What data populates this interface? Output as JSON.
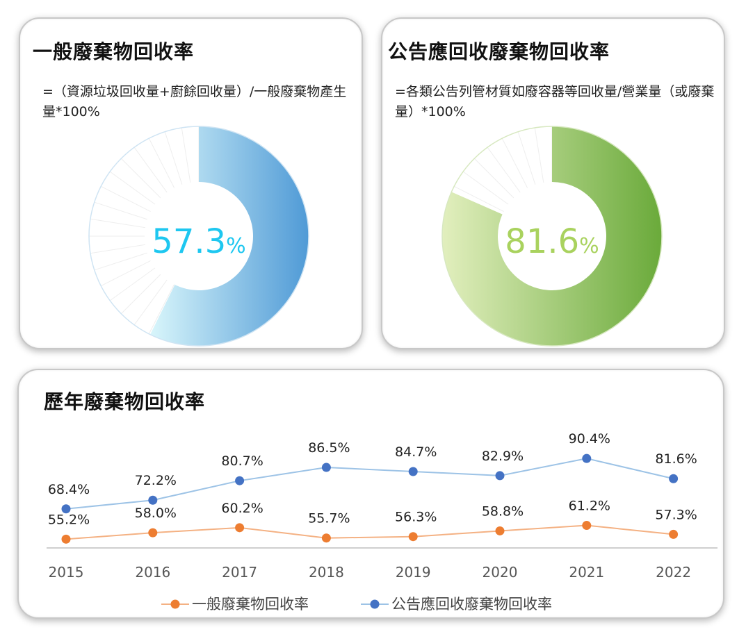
{
  "cards": [
    {
      "title": "一般廢棄物回收率",
      "formula": "=（資源垃圾回收量+廚餘回收量）/一般廢棄物產生量*100%",
      "value": 57.3,
      "value_text": "57.3",
      "unit": "%",
      "value_color": "#1ec7f0"
    },
    {
      "title": "公告應回收廢棄物回收率",
      "formula": "=各類公告列管材質如廢容器等回收量/營業量（或廢棄量）*100%",
      "value": 81.6,
      "value_text": "81.6",
      "unit": "%",
      "value_color": "#a9d25e"
    }
  ],
  "trend": {
    "title": "歷年廢棄物回收率"
  },
  "chart_data": [
    {
      "type": "pie",
      "title": "一般廢棄物回收率",
      "values": [
        57.3,
        42.7
      ],
      "colors": [
        "#4f9ad6",
        "#ffffff"
      ]
    },
    {
      "type": "pie",
      "title": "公告應回收廢棄物回收率",
      "values": [
        81.6,
        18.4
      ],
      "colors": [
        "#6aaa3a",
        "#ffffff"
      ]
    },
    {
      "type": "line",
      "title": "歷年廢棄物回收率",
      "categories": [
        "2015",
        "2016",
        "2017",
        "2018",
        "2019",
        "2020",
        "2021",
        "2022"
      ],
      "series": [
        {
          "name": "一般廢棄物回收率",
          "values": [
            55.2,
            58.0,
            60.2,
            55.7,
            56.3,
            58.8,
            61.2,
            57.3
          ],
          "labels": [
            "55.2%",
            "58.0%",
            "60.2%",
            "55.7%",
            "56.3%",
            "58.8%",
            "61.2%",
            "57.3%"
          ],
          "color": "#ed7d31",
          "line_color": "#f4b183"
        },
        {
          "name": "公告應回收廢棄物回收率",
          "values": [
            68.4,
            72.2,
            80.7,
            86.5,
            84.7,
            82.9,
            90.4,
            81.6
          ],
          "labels": [
            "68.4%",
            "72.2%",
            "80.7%",
            "86.5%",
            "84.7%",
            "82.9%",
            "90.4%",
            "81.6%"
          ],
          "color": "#4472c4",
          "line_color": "#9dc3e6"
        }
      ],
      "legend": "bottom",
      "grid": false
    }
  ]
}
